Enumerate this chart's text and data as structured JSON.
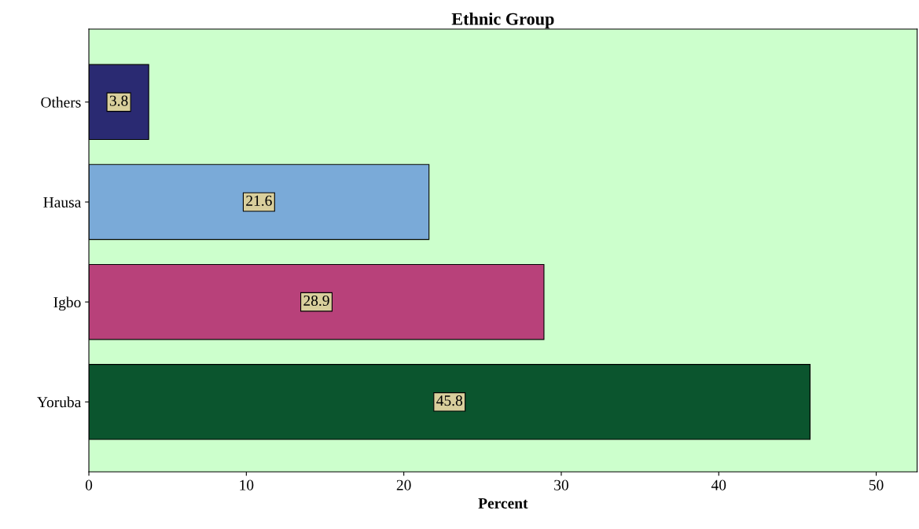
{
  "chart_data": {
    "type": "bar",
    "orientation": "horizontal",
    "title": "Ethnic Group",
    "xlabel": "Percent",
    "categories": [
      "Others",
      "Hausa",
      "Igbo",
      "Yoruba"
    ],
    "values": [
      3.8,
      21.6,
      28.9,
      45.8
    ],
    "colors": [
      "#2a2a72",
      "#7aaad8",
      "#b8417a",
      "#0b552e"
    ],
    "xlim": [
      0,
      52.6
    ],
    "xticks": [
      0,
      10,
      20,
      30,
      40,
      50
    ],
    "grid": false,
    "data_labels": true
  }
}
